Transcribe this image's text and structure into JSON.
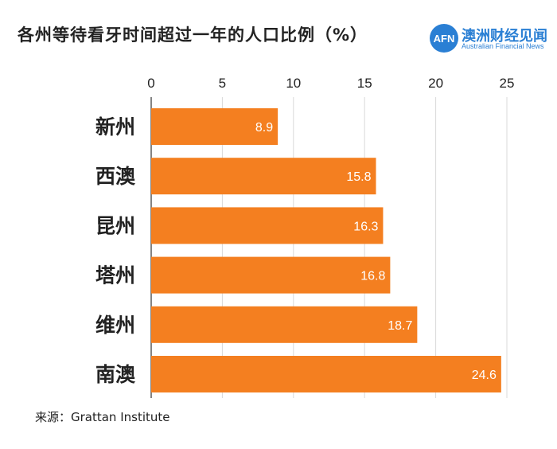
{
  "header": {
    "title": "各州等待看牙时间超过一年的人口比例（%）"
  },
  "logo": {
    "badge_text": "AFN",
    "name_cn": "澳洲财经见闻",
    "name_en": "Australian Financial News"
  },
  "chart_data": {
    "type": "bar",
    "orientation": "horizontal",
    "title": "各州等待看牙时间超过一年的人口比例（%）",
    "categories": [
      "新州",
      "西澳",
      "昆州",
      "塔州",
      "维州",
      "南澳"
    ],
    "values": [
      8.9,
      15.8,
      16.3,
      16.8,
      18.7,
      24.6
    ],
    "value_labels": [
      "8.9",
      "15.8",
      "16.3",
      "16.8",
      "18.7",
      "24.6"
    ],
    "x_ticks": [
      0,
      5,
      10,
      15,
      20,
      25
    ],
    "x_tick_labels": [
      "0",
      "5",
      "10",
      "15",
      "20",
      "25"
    ],
    "xlim": [
      0,
      25
    ],
    "axis_position": "top",
    "grid": true,
    "bar_color": "#f47f20",
    "grid_color": "#d9d9d9",
    "value_label_color": "#ffffff",
    "xlabel": "",
    "ylabel": ""
  },
  "footer": {
    "source": "来源：Grattan Institute"
  }
}
